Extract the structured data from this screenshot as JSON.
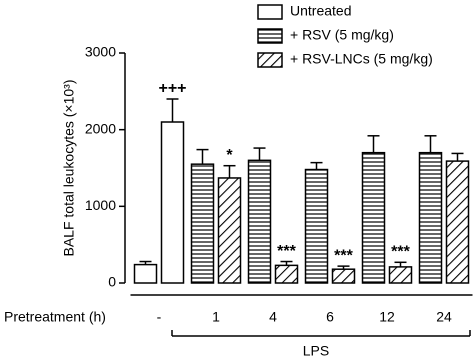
{
  "chart_data": {
    "type": "bar",
    "y_label": "BALF total leukocytes (×10³)",
    "x_label": "Pretreatment (h)",
    "group_label": "LPS",
    "categories": [
      "-",
      null,
      "1",
      "4",
      "6",
      "12",
      "24"
    ],
    "ylim": [
      0,
      3000
    ],
    "yticks": [
      0,
      1000,
      2000,
      3000
    ],
    "series": [
      {
        "name": "Untreated",
        "color": "#000000",
        "pattern": "none",
        "values": [
          240,
          2100,
          null,
          null,
          null,
          null,
          null
        ],
        "errors": [
          40,
          300,
          null,
          null,
          null,
          null,
          null
        ],
        "significance": [
          null,
          "+++",
          null,
          null,
          null,
          null,
          null
        ]
      },
      {
        "name": "+ RSV (5 mg/kg)",
        "color": "#000000",
        "pattern": "horizontal",
        "values": [
          null,
          null,
          1550,
          1600,
          1480,
          1700,
          1700
        ],
        "errors": [
          null,
          null,
          190,
          160,
          90,
          220,
          220
        ]
      },
      {
        "name": "+ RSV-LNCs (5 mg/kg)",
        "color": "#000000",
        "pattern": "diagonal",
        "values": [
          null,
          null,
          1370,
          230,
          180,
          210,
          1590
        ],
        "errors": [
          null,
          null,
          160,
          50,
          40,
          60,
          100
        ],
        "significance": [
          null,
          null,
          "*",
          "***",
          "***",
          "***",
          null
        ]
      }
    ]
  }
}
